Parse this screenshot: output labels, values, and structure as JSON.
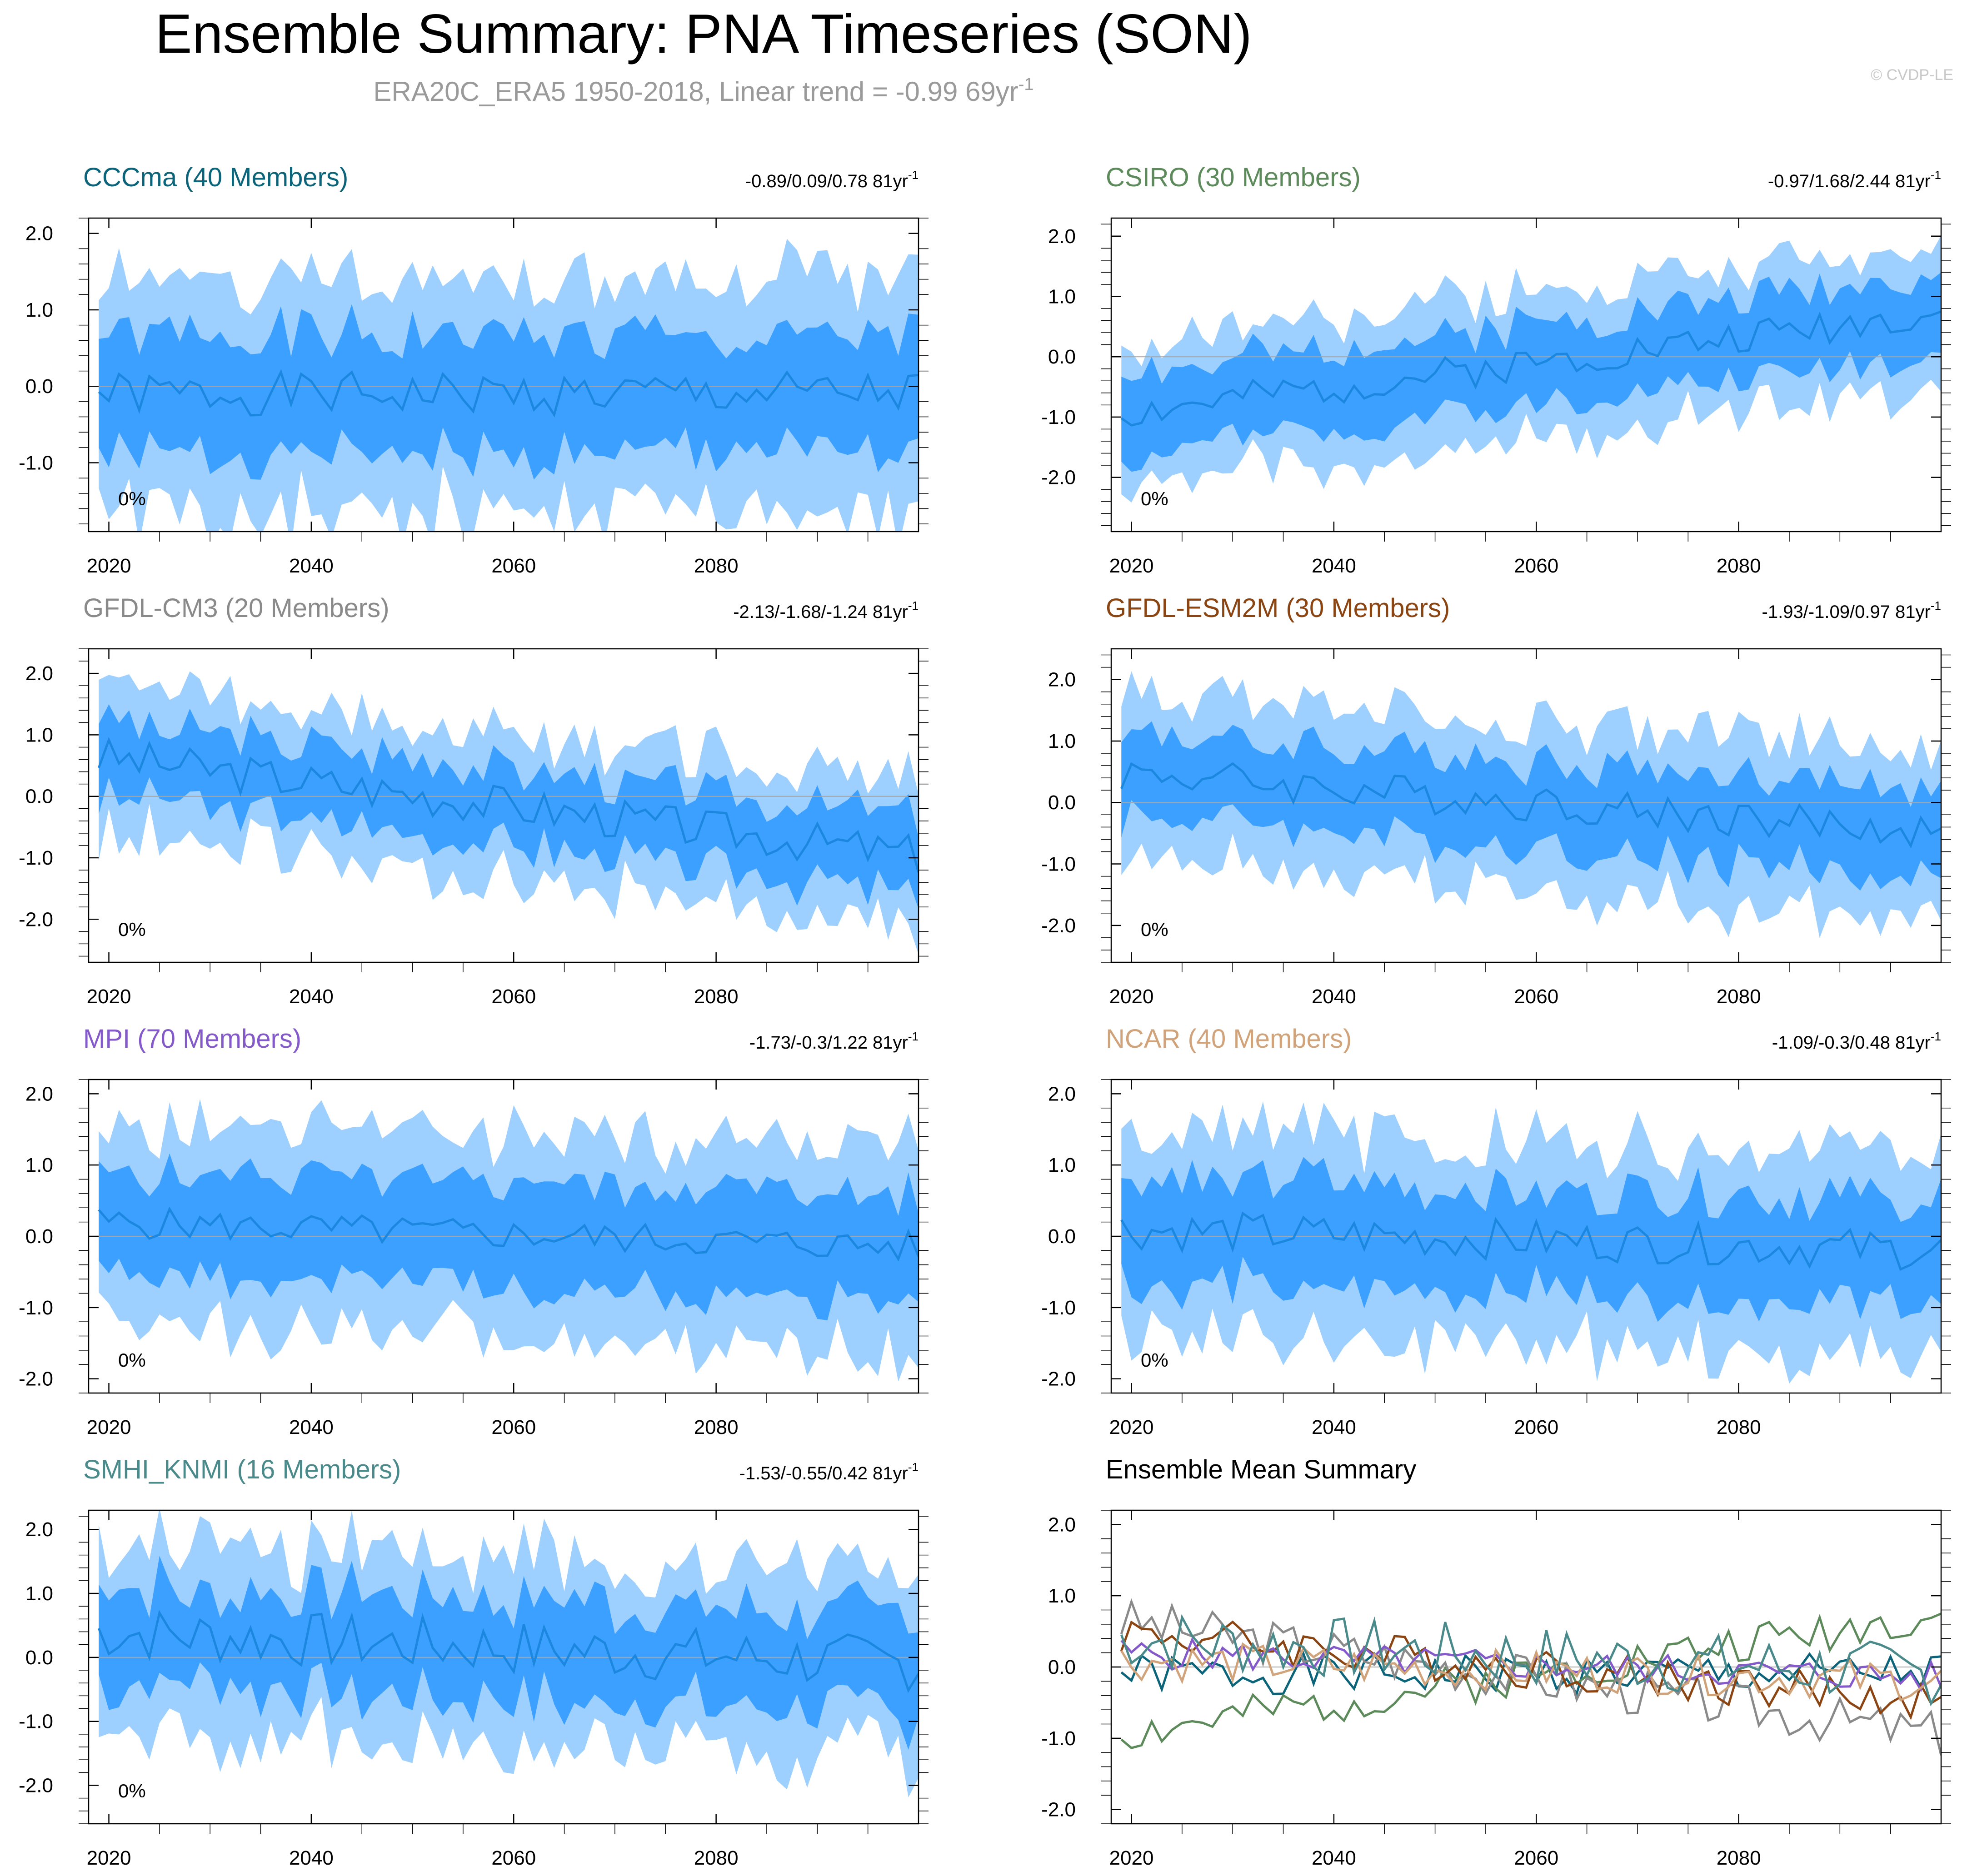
{
  "header": {
    "title": "Ensemble Summary: PNA Timeseries (SON)",
    "subtitle_main": "ERA20C_ERA5 1950-2018, Linear trend = -0.99 69yr",
    "subtitle_sup": "-1",
    "watermark": "© CVDP-LE"
  },
  "style": {
    "band_outer": "#9dd0ff",
    "band_inner": "#3ba0ff",
    "mean_line": "#1c87de",
    "zero_line": "#a6a6a6",
    "text": "#000000"
  },
  "chart_data": [
    {
      "type": "area",
      "title": "CCCma (40 Members)",
      "title_color": "#0b6479",
      "trend_label": "-0.89/0.09/0.78 81yr",
      "trend_sup": "-1",
      "pct_label": "0%",
      "x_range": [
        2018,
        2100
      ],
      "y_range": [
        -1.9,
        2.2
      ],
      "y_ticks": [
        2.0,
        1.0,
        0.0,
        -1.0
      ],
      "y_tick_labels": [
        "2.0",
        "1.0",
        "0.0",
        "-1.0"
      ],
      "x_ticks": [
        2020,
        2040,
        2060,
        2080
      ],
      "x_tick_labels": [
        "2020",
        "2040",
        "2060",
        "2080"
      ],
      "series": {
        "trend": 0.0,
        "mean_start": -0.1,
        "inner_spread": 0.75,
        "outer_spread": 1.5,
        "noise": 0.13,
        "seed": 1
      }
    },
    {
      "type": "area",
      "title": "CSIRO (30 Members)",
      "title_color": "#5d8a5a",
      "trend_label": "-0.97/1.68/2.44 81yr",
      "trend_sup": "-1",
      "pct_label": "0%",
      "x_range": [
        2018,
        2100
      ],
      "y_range": [
        -2.9,
        2.3
      ],
      "y_ticks": [
        2.0,
        1.0,
        0.0,
        -1.0,
        -2.0
      ],
      "y_tick_labels": [
        "2.0",
        "1.0",
        "0.0",
        "-1.0",
        "-2.0"
      ],
      "x_ticks": [
        2020,
        2040,
        2060,
        2080
      ],
      "x_tick_labels": [
        "2020",
        "2040",
        "2060",
        "2080"
      ],
      "series": {
        "trend": 1.7,
        "mean_start": -0.95,
        "inner_spread": 0.65,
        "outer_spread": 1.2,
        "noise": 0.13,
        "seed": 2
      }
    },
    {
      "type": "area",
      "title": "GFDL-CM3 (20 Members)",
      "title_color": "#8a8a8a",
      "trend_label": "-2.13/-1.68/-1.24 81yr",
      "trend_sup": "-1",
      "pct_label": "0%",
      "x_range": [
        2018,
        2100
      ],
      "y_range": [
        -2.7,
        2.4
      ],
      "y_ticks": [
        2.0,
        1.0,
        0.0,
        -1.0,
        -2.0
      ],
      "y_tick_labels": [
        "2.0",
        "1.0",
        "0.0",
        "-1.0",
        "-2.0"
      ],
      "x_ticks": [
        2020,
        2040,
        2060,
        2080
      ],
      "x_tick_labels": [
        "2020",
        "2040",
        "2060",
        "2080"
      ],
      "series": {
        "trend": -1.6,
        "mean_start": 0.65,
        "inner_spread": 0.6,
        "outer_spread": 1.2,
        "noise": 0.15,
        "seed": 3
      }
    },
    {
      "type": "area",
      "title": "GFDL-ESM2M (30 Members)",
      "title_color": "#8b4513",
      "trend_label": "-1.93/-1.09/0.97 81yr",
      "trend_sup": "-1",
      "pct_label": "0%",
      "x_range": [
        2018,
        2100
      ],
      "y_range": [
        -2.6,
        2.5
      ],
      "y_ticks": [
        2.0,
        1.0,
        0.0,
        -1.0,
        -2.0
      ],
      "y_tick_labels": [
        "2.0",
        "1.0",
        "0.0",
        "-1.0",
        "-2.0"
      ],
      "x_ticks": [
        2020,
        2040,
        2060,
        2080
      ],
      "x_tick_labels": [
        "2020",
        "2040",
        "2060",
        "2080"
      ],
      "series": {
        "trend": -1.0,
        "mean_start": 0.5,
        "inner_spread": 0.7,
        "outer_spread": 1.35,
        "noise": 0.14,
        "seed": 4
      }
    },
    {
      "type": "area",
      "title": "MPI (70 Members)",
      "title_color": "#8459c9",
      "trend_label": "-1.73/-0.3/1.22 81yr",
      "trend_sup": "-1",
      "pct_label": "0%",
      "x_range": [
        2018,
        2100
      ],
      "y_range": [
        -2.2,
        2.2
      ],
      "y_ticks": [
        2.0,
        1.0,
        0.0,
        -1.0,
        -2.0
      ],
      "y_tick_labels": [
        "2.0",
        "1.0",
        "0.0",
        "-1.0",
        "-2.0"
      ],
      "x_ticks": [
        2020,
        2040,
        2060,
        2080
      ],
      "x_tick_labels": [
        "2020",
        "2040",
        "2060",
        "2080"
      ],
      "series": {
        "trend": -0.35,
        "mean_start": 0.2,
        "inner_spread": 0.72,
        "outer_spread": 1.4,
        "noise": 0.1,
        "seed": 5
      }
    },
    {
      "type": "area",
      "title": "NCAR (40 Members)",
      "title_color": "#d1a37a",
      "trend_label": "-1.09/-0.3/0.48 81yr",
      "trend_sup": "-1",
      "pct_label": "0%",
      "x_range": [
        2018,
        2100
      ],
      "y_range": [
        -2.2,
        2.2
      ],
      "y_ticks": [
        2.0,
        1.0,
        0.0,
        -1.0,
        -2.0
      ],
      "y_tick_labels": [
        "2.0",
        "1.0",
        "0.0",
        "-1.0",
        "-2.0"
      ],
      "x_ticks": [
        2020,
        2040,
        2060,
        2080
      ],
      "x_tick_labels": [
        "2020",
        "2040",
        "2060",
        "2080"
      ],
      "series": {
        "trend": -0.3,
        "mean_start": 0.1,
        "inner_spread": 0.72,
        "outer_spread": 1.4,
        "noise": 0.13,
        "seed": 6
      }
    },
    {
      "type": "area",
      "title": "SMHI_KNMI (16 Members)",
      "title_color": "#4a8a8a",
      "trend_label": "-1.53/-0.55/0.42 81yr",
      "trend_sup": "-1",
      "pct_label": "0%",
      "x_range": [
        2018,
        2100
      ],
      "y_range": [
        -2.6,
        2.3
      ],
      "y_ticks": [
        2.0,
        1.0,
        0.0,
        -1.0,
        -2.0
      ],
      "y_tick_labels": [
        "2.0",
        "1.0",
        "0.0",
        "-1.0",
        "-2.0"
      ],
      "x_ticks": [
        2020,
        2040,
        2060,
        2080
      ],
      "x_tick_labels": [
        "2020",
        "2040",
        "2060",
        "2080"
      ],
      "series": {
        "trend": -0.5,
        "mean_start": 0.4,
        "inner_spread": 0.75,
        "outer_spread": 1.45,
        "noise": 0.2,
        "seed": 7
      }
    },
    {
      "type": "line",
      "title": "Ensemble Mean Summary",
      "title_color": "#000000",
      "x_range": [
        2018,
        2100
      ],
      "y_range": [
        -2.2,
        2.2
      ],
      "y_ticks": [
        2.0,
        1.0,
        0.0,
        -1.0,
        -2.0
      ],
      "y_tick_labels": [
        "2.0",
        "1.0",
        "0.0",
        "-1.0",
        "-2.0"
      ],
      "x_ticks": [
        2020,
        2040,
        2060,
        2080
      ],
      "x_tick_labels": [
        "2020",
        "2040",
        "2060",
        "2080"
      ],
      "lines": [
        {
          "name": "CCCma",
          "color": "#0b6479",
          "trend": 0.0,
          "mean_start": -0.1,
          "noise": 0.13,
          "seed": 1
        },
        {
          "name": "CSIRO",
          "color": "#5d8a5a",
          "trend": 1.7,
          "mean_start": -0.95,
          "noise": 0.13,
          "seed": 2
        },
        {
          "name": "GFDL-CM3",
          "color": "#8a8a8a",
          "trend": -1.6,
          "mean_start": 0.65,
          "noise": 0.15,
          "seed": 3
        },
        {
          "name": "GFDL-ESM2M",
          "color": "#8b4513",
          "trend": -1.0,
          "mean_start": 0.5,
          "noise": 0.14,
          "seed": 4
        },
        {
          "name": "MPI",
          "color": "#8459c9",
          "trend": -0.35,
          "mean_start": 0.2,
          "noise": 0.1,
          "seed": 5
        },
        {
          "name": "NCAR",
          "color": "#d1a37a",
          "trend": -0.3,
          "mean_start": 0.1,
          "noise": 0.13,
          "seed": 6
        },
        {
          "name": "SMHI_KNMI",
          "color": "#4a8a8a",
          "trend": -0.5,
          "mean_start": 0.4,
          "noise": 0.2,
          "seed": 7
        }
      ]
    }
  ]
}
